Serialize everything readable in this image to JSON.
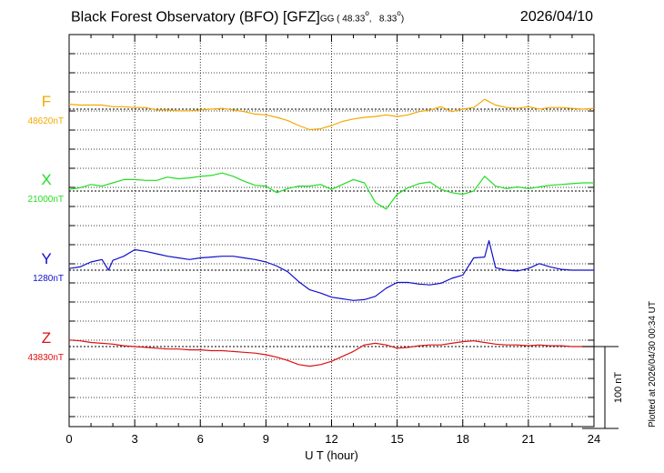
{
  "chart_data": {
    "type": "line",
    "title": "Black Forest Observatory (BFO)  [GFZ]",
    "coords": {
      "system": "GG",
      "lat": "( 48.33",
      "lon": "8.33",
      "close": ")"
    },
    "date": "2026/04/10",
    "xlabel": "U T (hour)",
    "xlim": [
      0,
      24
    ],
    "xticks": [
      "0",
      "3",
      "6",
      "9",
      "12",
      "15",
      "18",
      "21",
      "24"
    ],
    "scale_bar": {
      "label": "100 nT",
      "value": 100
    },
    "plotted_note": "Plotted at 2026/04/30 00:34 UT",
    "grid": true,
    "series": [
      {
        "name": "F",
        "baseline": "48620nT",
        "color": "#f5a800",
        "x": [
          0,
          0.5,
          1,
          1.5,
          2,
          2.5,
          3,
          3.5,
          4,
          4.5,
          5,
          5.5,
          6,
          6.5,
          7,
          7.5,
          8,
          8.5,
          9,
          9.5,
          10,
          10.5,
          11,
          11.5,
          12,
          12.5,
          13,
          13.5,
          14,
          14.5,
          15,
          15.5,
          16,
          16.5,
          17,
          17.5,
          18,
          18.5,
          19,
          19.5,
          20,
          20.5,
          21,
          21.5,
          22,
          22.5,
          23,
          23.5,
          24
        ],
        "y": [
          6,
          5,
          5,
          5,
          3,
          3,
          2,
          2,
          -1,
          -1,
          -2,
          -2,
          -1,
          0,
          1,
          -1,
          -3,
          -6,
          -7,
          -10,
          -14,
          -20,
          -25,
          -24,
          -20,
          -15,
          -12,
          -10,
          -9,
          -7,
          -9,
          -7,
          -3,
          -1,
          3,
          -3,
          0,
          2,
          12,
          5,
          2,
          1,
          3,
          0,
          2,
          2,
          1,
          0,
          1
        ]
      },
      {
        "name": "X",
        "baseline": "21000nT",
        "color": "#22dd22",
        "x": [
          0,
          0.5,
          1,
          1.5,
          2,
          2.5,
          3,
          3.5,
          4,
          4.5,
          5,
          5.5,
          6,
          6.5,
          7,
          7.5,
          8,
          8.5,
          9,
          9.5,
          10,
          10.5,
          11,
          11.5,
          12,
          12.5,
          13,
          13.5,
          14,
          14.5,
          15,
          15.5,
          16,
          16.5,
          17,
          17.5,
          18,
          18.5,
          19,
          19.5,
          20,
          20.5,
          21,
          21.5,
          22,
          22.5,
          23,
          23.5,
          24
        ],
        "y": [
          2,
          4,
          8,
          6,
          10,
          14,
          14,
          13,
          13,
          17,
          15,
          16,
          18,
          19,
          22,
          18,
          12,
          7,
          6,
          -2,
          3,
          6,
          6,
          8,
          2,
          8,
          14,
          10,
          -14,
          -22,
          -4,
          4,
          9,
          11,
          2,
          -2,
          -4,
          0,
          18,
          6,
          3,
          5,
          3,
          5,
          7,
          8,
          9,
          10,
          10
        ]
      },
      {
        "name": "Y",
        "baseline": "1280nT",
        "color": "#1010cc",
        "x": [
          0,
          0.5,
          1,
          1.5,
          1.8,
          2,
          2.5,
          3,
          3.5,
          4,
          4.5,
          5,
          5.5,
          6,
          6.5,
          7,
          7.5,
          8,
          8.5,
          9,
          9.5,
          10,
          10.5,
          11,
          11.5,
          12,
          12.5,
          13,
          13.5,
          14,
          14.5,
          15,
          15.5,
          16,
          16.5,
          17,
          17.5,
          18,
          18.5,
          19,
          19.2,
          19.5,
          20,
          20.5,
          21,
          21.5,
          22,
          22.5,
          23,
          23.5,
          24
        ],
        "y": [
          2,
          4,
          10,
          13,
          0,
          12,
          17,
          25,
          23,
          20,
          17,
          15,
          13,
          15,
          16,
          17,
          17,
          15,
          13,
          10,
          5,
          -2,
          -14,
          -24,
          -28,
          -33,
          -35,
          -37,
          -36,
          -32,
          -22,
          -15,
          -15,
          -17,
          -18,
          -16,
          -10,
          -6,
          15,
          16,
          36,
          3,
          0,
          -1,
          2,
          8,
          4,
          1,
          0,
          0,
          0
        ]
      },
      {
        "name": "Z",
        "baseline": "43830nT",
        "color": "#dd1111",
        "x": [
          0,
          0.5,
          1,
          1.5,
          2,
          2.5,
          3,
          3.5,
          4,
          4.5,
          5,
          5.5,
          6,
          6.5,
          7,
          7.5,
          8,
          8.5,
          9,
          9.5,
          10,
          10.5,
          11,
          11.5,
          12,
          12.5,
          13,
          13.5,
          14,
          14.5,
          15,
          15.5,
          16,
          16.5,
          17,
          17.5,
          18,
          18.5,
          19,
          19.5,
          20,
          20.5,
          21,
          21.5,
          22,
          22.5,
          23,
          23.5,
          24
        ],
        "y": [
          8,
          7,
          5,
          4,
          3,
          1,
          0,
          -1,
          -2,
          -3,
          -3,
          -4,
          -4,
          -5,
          -5,
          -6,
          -7,
          -8,
          -10,
          -13,
          -17,
          -22,
          -24,
          -22,
          -18,
          -12,
          -6,
          2,
          4,
          2,
          -2,
          -1,
          1,
          2,
          2,
          4,
          6,
          7,
          5,
          3,
          2,
          2,
          1,
          2,
          1,
          1,
          0,
          0,
          0
        ]
      }
    ]
  }
}
